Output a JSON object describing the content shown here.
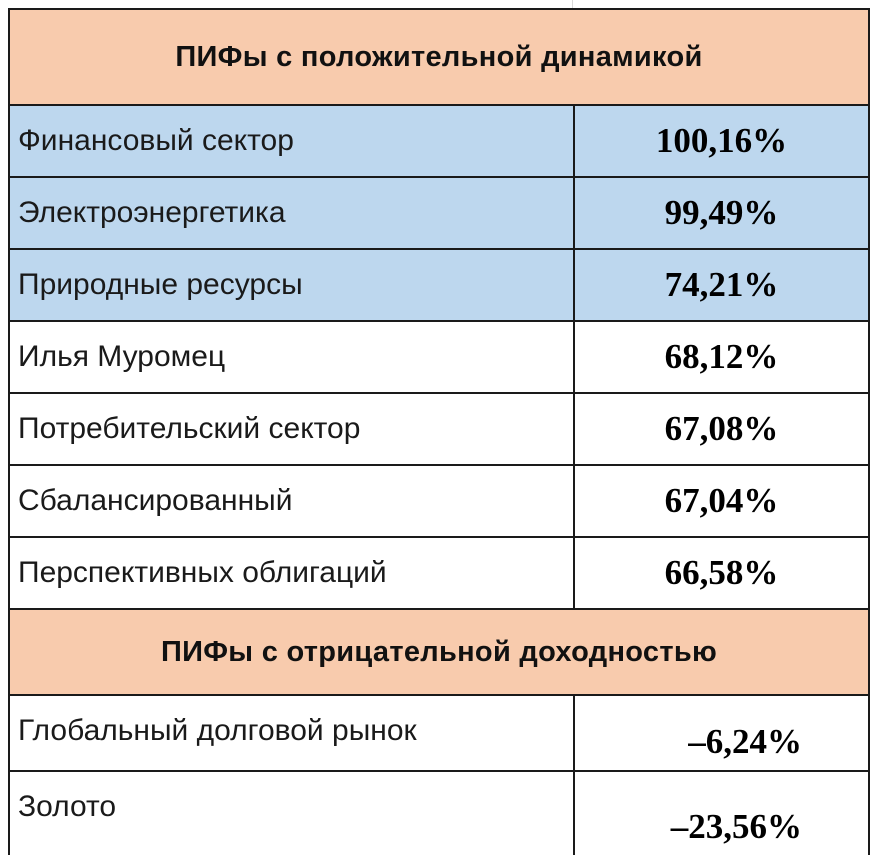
{
  "positive_section": {
    "title": "ПИФы с положительной динамикой",
    "rows": [
      {
        "name": "Финансовый сектор",
        "value": "100,16%"
      },
      {
        "name": "Электроэнергетика",
        "value": "99,49%"
      },
      {
        "name": "Природные ресурсы",
        "value": "74,21%"
      },
      {
        "name": "Илья Муромец",
        "value": "68,12%"
      },
      {
        "name": "Потребительский сектор",
        "value": "67,08%"
      },
      {
        "name": "Сбалансированный",
        "value": "67,04%"
      },
      {
        "name": "Перспективных облигаций",
        "value": "66,58%"
      }
    ]
  },
  "negative_section": {
    "title": "ПИФы с отрицательной доходностью",
    "rows": [
      {
        "name": "Глобальный долговой рынок",
        "value": "–6,24%"
      },
      {
        "name": "Золото",
        "value": "–23,56%"
      }
    ]
  },
  "colors": {
    "header_fill": "#f8cbad",
    "highlight_fill": "#bdd7ee",
    "border": "#1a1a1a"
  }
}
